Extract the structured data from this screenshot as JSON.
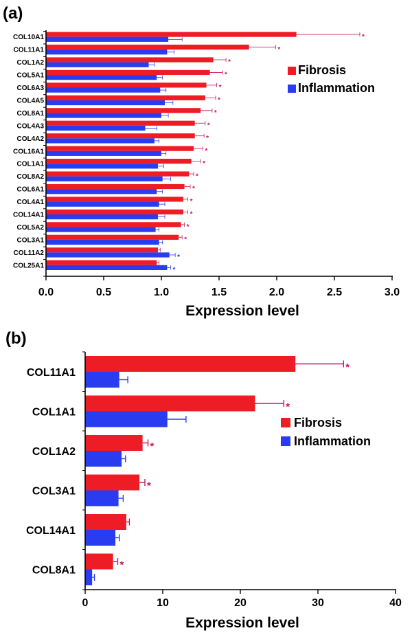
{
  "colors": {
    "fibrosis": "#ee1c25",
    "inflammation": "#2a3cf0",
    "fibrosis_err": "#c2185b",
    "inflammation_err": "#2a3cf0"
  },
  "chart_data": [
    {
      "panel": "(a)",
      "type": "bar",
      "orientation": "horizontal",
      "categories": [
        "COL10A1",
        "COL11A1",
        "COL1A2",
        "COL5A1",
        "COL6A3",
        "COL4A5",
        "COL8A1",
        "COL4A3",
        "COL4A2",
        "COL16A1",
        "COL1A1",
        "COL8A2",
        "COL6A1",
        "COL4A1",
        "COL14A1",
        "COL5A2",
        "COL3A1",
        "COL11A2",
        "COL25A1"
      ],
      "series": [
        {
          "name": "Fibrosis",
          "values": [
            2.17,
            1.76,
            1.45,
            1.42,
            1.39,
            1.38,
            1.34,
            1.29,
            1.29,
            1.28,
            1.26,
            1.24,
            1.2,
            1.19,
            1.19,
            1.17,
            1.15,
            0.97,
            0.96
          ],
          "errors": [
            0.55,
            0.23,
            0.11,
            0.11,
            0.09,
            0.09,
            0.1,
            0.09,
            0.08,
            0.08,
            0.08,
            0.04,
            0.05,
            0.04,
            0.04,
            0.03,
            0.03,
            0.02,
            0.02
          ],
          "significant": [
            true,
            true,
            true,
            true,
            true,
            true,
            true,
            true,
            true,
            true,
            true,
            true,
            true,
            true,
            true,
            true,
            true,
            false,
            false
          ]
        },
        {
          "name": "Inflammation",
          "values": [
            1.06,
            1.05,
            0.89,
            0.96,
            0.99,
            1.03,
            1.0,
            0.86,
            0.94,
            1.0,
            0.97,
            1.01,
            0.96,
            0.98,
            0.97,
            0.95,
            0.98,
            1.07,
            1.05
          ],
          "errors": [
            0.12,
            0.06,
            0.05,
            0.05,
            0.05,
            0.07,
            0.06,
            0.1,
            0.04,
            0.04,
            0.05,
            0.07,
            0.05,
            0.05,
            0.06,
            0.03,
            0.03,
            0.05,
            0.03
          ],
          "significant": [
            false,
            false,
            false,
            false,
            false,
            false,
            false,
            false,
            false,
            false,
            false,
            false,
            false,
            false,
            false,
            false,
            false,
            true,
            true
          ]
        }
      ],
      "xlabel": "Expression level",
      "xlim": [
        0,
        3.0
      ],
      "xticks": [
        "0.0",
        "0.5",
        "1.0",
        "1.5",
        "2.0",
        "2.5",
        "3.0"
      ],
      "legend": "right"
    },
    {
      "panel": "(b)",
      "type": "bar",
      "orientation": "horizontal",
      "categories": [
        "COL11A1",
        "COL1A1",
        "COL1A2",
        "COL3A1",
        "COL14A1",
        "COL8A1"
      ],
      "series": [
        {
          "name": "Fibrosis",
          "values": [
            27.1,
            21.9,
            7.4,
            7.0,
            5.3,
            3.6
          ],
          "errors": [
            6.2,
            3.7,
            0.7,
            0.7,
            0.4,
            0.6
          ],
          "significant": [
            true,
            true,
            true,
            true,
            false,
            true
          ]
        },
        {
          "name": "Inflammation",
          "values": [
            4.4,
            10.6,
            4.7,
            4.3,
            3.9,
            0.9
          ],
          "errors": [
            1.1,
            2.4,
            0.5,
            0.6,
            0.5,
            0.3
          ],
          "significant": [
            false,
            false,
            false,
            false,
            false,
            false
          ]
        }
      ],
      "xlabel": "Expression level",
      "xlim": [
        0,
        40
      ],
      "xticks": [
        "0",
        "10",
        "20",
        "30",
        "40"
      ],
      "legend": "right"
    }
  ],
  "significance_marker": "*"
}
